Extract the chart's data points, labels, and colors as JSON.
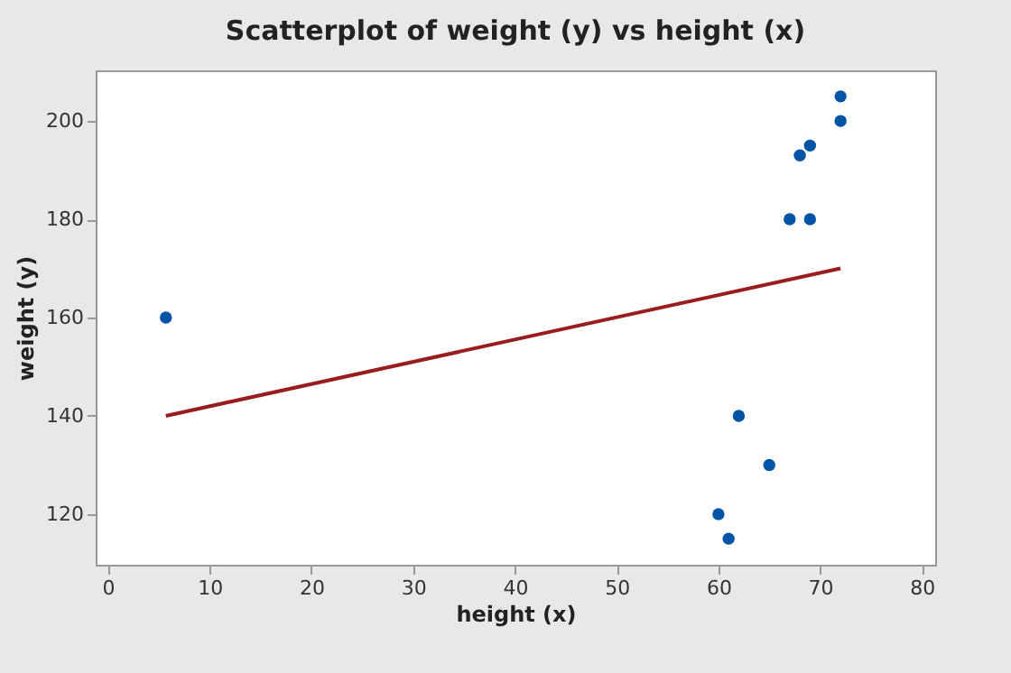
{
  "chart_data": {
    "type": "scatter",
    "title": "Scatterplot of weight (y) vs height (x)",
    "xlabel": "height (x)",
    "ylabel": "weight (y)",
    "xlim": [
      -1.2,
      81.3
    ],
    "ylim": [
      109.7,
      210.3
    ],
    "xticks": [
      0,
      10,
      20,
      30,
      40,
      50,
      60,
      70,
      80
    ],
    "yticks": [
      120,
      140,
      160,
      180,
      200
    ],
    "grid": false,
    "series": [
      {
        "marker": "circle",
        "color": "#0054a6",
        "x": [
          5.7,
          60,
          61,
          62,
          65,
          67,
          69,
          68,
          69,
          72,
          72
        ],
        "values": [
          160,
          120,
          115,
          140,
          130,
          180,
          180,
          193,
          195,
          200,
          205
        ]
      },
      {
        "type": "line",
        "color": "#9b1c1c",
        "x": [
          5.7,
          72
        ],
        "values": [
          140,
          170
        ],
        "line_style": "solid"
      }
    ]
  }
}
